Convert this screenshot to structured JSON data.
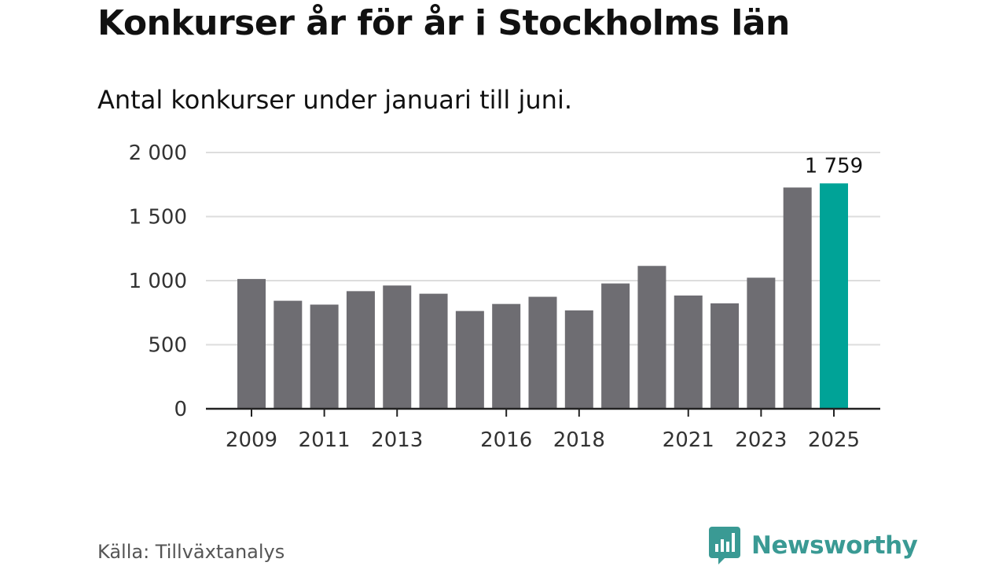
{
  "chart_data": {
    "type": "bar",
    "title": "Konkurser år för år i Stockholms län",
    "subtitle": "Antal konkurser under januari till juni.",
    "categories": [
      "2009",
      "2010",
      "2011",
      "2012",
      "2013",
      "2014",
      "2015",
      "2016",
      "2017",
      "2018",
      "2019",
      "2020",
      "2021",
      "2022",
      "2023",
      "2024",
      "2025"
    ],
    "values": [
      1013,
      843,
      813,
      918,
      962,
      898,
      763,
      818,
      874,
      768,
      978,
      1115,
      884,
      823,
      1023,
      1727,
      1759
    ],
    "x_tick_labels": [
      "2009",
      "2011",
      "2013",
      "2016",
      "2018",
      "2021",
      "2023",
      "2025"
    ],
    "y_ticks": [
      0,
      500,
      1000,
      1500,
      2000
    ],
    "y_tick_labels": [
      "0",
      "500",
      "1 000",
      "1 500",
      "2 000"
    ],
    "ylim": [
      0,
      2000
    ],
    "grid": true,
    "highlight": {
      "category": "2025",
      "label": "1 759"
    },
    "colors": {
      "bar": "#6e6d72",
      "highlight": "#00a397",
      "grid": "#dddddd",
      "axis": "#222222"
    }
  },
  "footer": {
    "source": "Källa: Tillväxtanalys",
    "brand": "Newsworthy",
    "brand_icon": "newsworthy-logo-icon",
    "brand_color": "#3a9a94"
  }
}
